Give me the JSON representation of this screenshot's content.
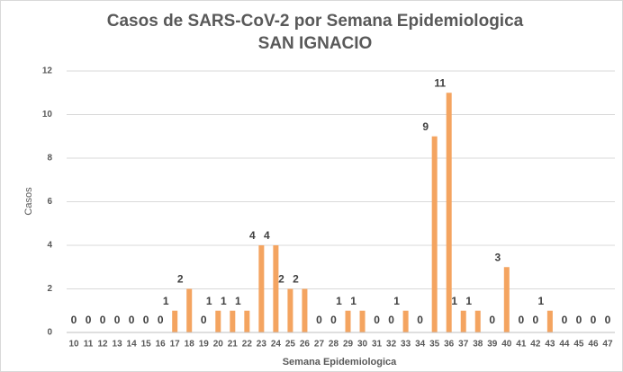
{
  "chart_data": {
    "type": "bar",
    "title": "Casos de SARS-CoV-2 por Semana Epidemiologica",
    "subtitle": "SAN IGNACIO",
    "x_label": "Semana Epidemiologica",
    "y_label": "Casos",
    "categories": [
      10,
      11,
      12,
      13,
      14,
      15,
      16,
      17,
      18,
      19,
      20,
      21,
      22,
      23,
      24,
      25,
      26,
      27,
      28,
      29,
      30,
      31,
      32,
      33,
      34,
      35,
      36,
      37,
      38,
      39,
      40,
      41,
      42,
      43,
      44,
      45,
      46,
      47
    ],
    "values": [
      0,
      0,
      0,
      0,
      0,
      0,
      0,
      1,
      2,
      0,
      1,
      1,
      1,
      4,
      4,
      2,
      2,
      0,
      0,
      1,
      1,
      0,
      0,
      1,
      0,
      9,
      11,
      1,
      1,
      0,
      3,
      0,
      0,
      1,
      0,
      0,
      0,
      0
    ],
    "color": "#f4a460",
    "ylim": [
      0,
      12
    ],
    "yticks": [
      0,
      2,
      4,
      6,
      8,
      10,
      12
    ],
    "grid": true
  }
}
